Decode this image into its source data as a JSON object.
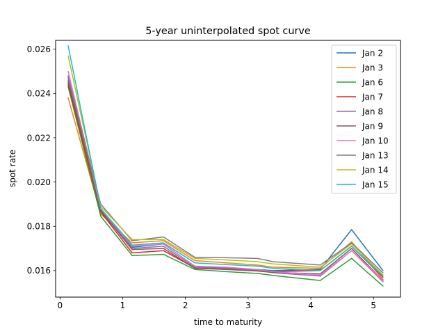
{
  "chart_data": {
    "type": "line",
    "title": "5-year uninterpolated spot curve",
    "xlabel": "time to maturity",
    "ylabel": "spot rate",
    "xlim": [
      -0.07,
      5.43
    ],
    "ylim": [
      0.0148,
      0.0264
    ],
    "xticks": [
      0,
      1,
      2,
      3,
      4,
      5
    ],
    "xtick_labels": [
      "0",
      "1",
      "2",
      "3",
      "4",
      "5"
    ],
    "yticks": [
      0.016,
      0.018,
      0.02,
      0.022,
      0.024,
      0.026
    ],
    "ytick_labels": [
      "0.016",
      "0.018",
      "0.020",
      "0.022",
      "0.024",
      "0.026"
    ],
    "grid": false,
    "legend_position": "top-right",
    "x": [
      0.13,
      0.65,
      1.15,
      1.65,
      2.15,
      2.65,
      3.15,
      3.4,
      4.15,
      4.65,
      5.15
    ],
    "series": [
      {
        "name": "Jan 2",
        "color": "#1f77b4",
        "values": [
          0.0246,
          0.0187,
          0.01705,
          0.0172,
          0.0162,
          0.01612,
          0.01605,
          0.016,
          0.01605,
          0.01785,
          0.016
        ]
      },
      {
        "name": "Jan 3",
        "color": "#ff7f0e",
        "values": [
          0.0238,
          0.01855,
          0.01725,
          0.01735,
          0.01645,
          0.01635,
          0.01625,
          0.01615,
          0.0161,
          0.0173,
          0.0156
        ]
      },
      {
        "name": "Jan 6",
        "color": "#2ca02c",
        "values": [
          0.0243,
          0.01845,
          0.01668,
          0.01673,
          0.01605,
          0.01595,
          0.01587,
          0.01578,
          0.01555,
          0.01655,
          0.0153
        ]
      },
      {
        "name": "Jan 7",
        "color": "#d62728",
        "values": [
          0.0244,
          0.01865,
          0.0168,
          0.0169,
          0.01612,
          0.01608,
          0.016,
          0.01595,
          0.016,
          0.0171,
          0.0157
        ]
      },
      {
        "name": "Jan 8",
        "color": "#9467bd",
        "values": [
          0.0248,
          0.01875,
          0.017,
          0.0171,
          0.01615,
          0.0161,
          0.016,
          0.0159,
          0.01575,
          0.0169,
          0.0155
        ]
      },
      {
        "name": "Jan 9",
        "color": "#8c564b",
        "values": [
          0.0245,
          0.0187,
          0.01695,
          0.017,
          0.0161,
          0.01605,
          0.01598,
          0.01592,
          0.01585,
          0.017,
          0.01555
        ]
      },
      {
        "name": "Jan 10",
        "color": "#e377c2",
        "values": [
          0.025,
          0.0188,
          0.0171,
          0.0172,
          0.0162,
          0.01615,
          0.01605,
          0.01595,
          0.0158,
          0.0169,
          0.01555
        ]
      },
      {
        "name": "Jan 13",
        "color": "#7f7f7f",
        "values": [
          0.0247,
          0.019,
          0.01735,
          0.01752,
          0.0166,
          0.01658,
          0.01655,
          0.0164,
          0.01625,
          0.01725,
          0.0159
        ]
      },
      {
        "name": "Jan 14",
        "color": "#bcbd22",
        "values": [
          0.0257,
          0.0189,
          0.0174,
          0.0174,
          0.01655,
          0.01648,
          0.0164,
          0.0163,
          0.01615,
          0.0172,
          0.0158
        ]
      },
      {
        "name": "Jan 15",
        "color": "#17becf",
        "values": [
          0.02615,
          0.0188,
          0.01715,
          0.01725,
          0.01635,
          0.01627,
          0.0162,
          0.0161,
          0.016,
          0.0171,
          0.01575
        ]
      }
    ]
  }
}
